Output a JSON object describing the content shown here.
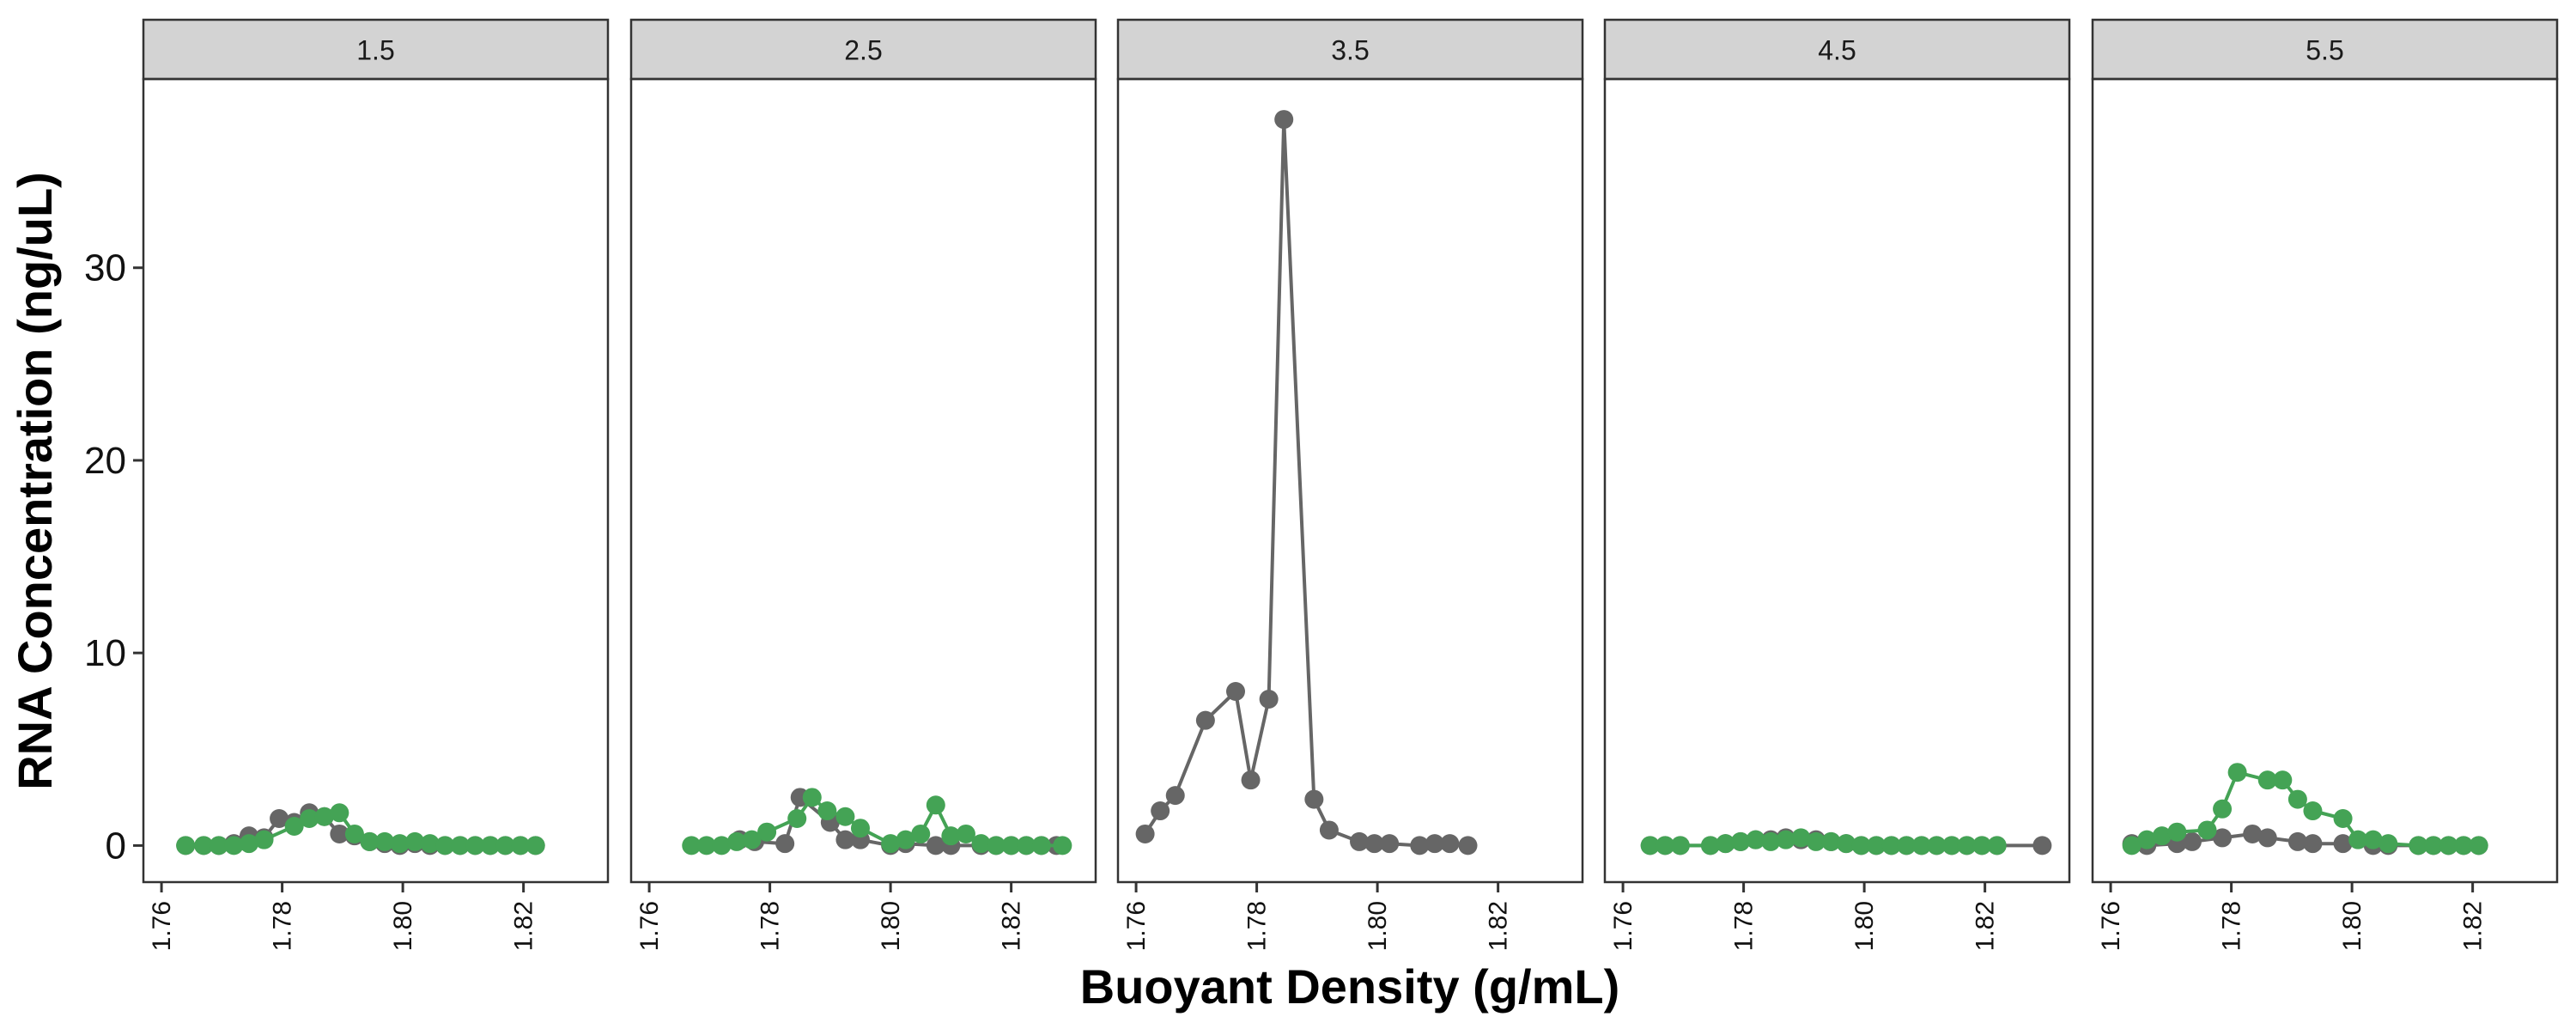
{
  "chart_data": {
    "type": "line",
    "xlabel": "Buoyant Density (g/mL)",
    "ylabel": "RNA Concentration (ng/uL)",
    "xlim": [
      1.757,
      1.834
    ],
    "ylim": [
      -1.9,
      39.8
    ],
    "x_ticks": [
      "1.76",
      "1.78",
      "1.80",
      "1.82"
    ],
    "y_ticks": [
      "0",
      "10",
      "20",
      "30"
    ],
    "grid": false,
    "legend": "none",
    "colors": {
      "gray": "#666666",
      "green": "#44a355",
      "strip_fill": "#d3d3d3",
      "panel_border": "#333333"
    },
    "panels": [
      {
        "label": "1.5",
        "series": [
          {
            "color": "gray",
            "x": [
              1.764,
              1.767,
              1.7695,
              1.772,
              1.7745,
              1.777,
              1.7795,
              1.782,
              1.7845,
              1.787,
              1.7895,
              1.792,
              1.7945,
              1.797,
              1.7995,
              1.802,
              1.8045,
              1.807,
              1.8095,
              1.812,
              1.8145,
              1.817,
              1.8195,
              1.822
            ],
            "values": [
              0,
              0,
              0,
              0.1,
              0.5,
              0.4,
              1.4,
              1.2,
              1.7,
              1.5,
              0.6,
              0.5,
              0.2,
              0.1,
              0,
              0.1,
              0,
              0,
              0,
              0,
              0,
              0,
              0,
              0
            ]
          },
          {
            "color": "green",
            "x": [
              1.764,
              1.767,
              1.7695,
              1.772,
              1.7745,
              1.777,
              1.782,
              1.7845,
              1.787,
              1.7895,
              1.792,
              1.7945,
              1.797,
              1.7995,
              1.802,
              1.8045,
              1.807,
              1.8095,
              1.812,
              1.8145,
              1.817,
              1.8195,
              1.822
            ],
            "values": [
              0,
              0,
              0,
              0,
              0.1,
              0.3,
              1.0,
              1.4,
              1.5,
              1.7,
              0.6,
              0.2,
              0.2,
              0.1,
              0.2,
              0.1,
              0,
              0,
              0,
              0,
              0,
              0,
              0
            ]
          }
        ]
      },
      {
        "label": "2.5",
        "series": [
          {
            "color": "gray",
            "x": [
              1.775,
              1.7775,
              1.7825,
              1.785,
              1.79,
              1.7925,
              1.795,
              1.8,
              1.8025,
              1.8075,
              1.81,
              1.815,
              1.8175,
              1.82,
              1.8225,
              1.825,
              1.8275
            ],
            "values": [
              0.3,
              0.2,
              0.1,
              2.5,
              1.2,
              0.3,
              0.3,
              0,
              0.1,
              0,
              0,
              0,
              0,
              0,
              0,
              0,
              0
            ]
          },
          {
            "color": "green",
            "x": [
              1.767,
              1.7695,
              1.772,
              1.7745,
              1.777,
              1.7795,
              1.7845,
              1.787,
              1.7895,
              1.7925,
              1.795,
              1.8,
              1.8025,
              1.805,
              1.8075,
              1.81,
              1.8125,
              1.815,
              1.8175,
              1.82,
              1.8225,
              1.825,
              1.8285
            ],
            "values": [
              0,
              0,
              0,
              0.2,
              0.3,
              0.7,
              1.4,
              2.5,
              1.8,
              1.5,
              0.9,
              0.1,
              0.3,
              0.6,
              2.1,
              0.5,
              0.6,
              0.1,
              0,
              0,
              0,
              0,
              0
            ]
          }
        ]
      },
      {
        "label": "3.5",
        "series": [
          {
            "color": "gray",
            "x": [
              1.7615,
              1.764,
              1.7665,
              1.7715,
              1.7765,
              1.779,
              1.782,
              1.7845,
              1.7895,
              1.792,
              1.797,
              1.7995,
              1.802,
              1.807,
              1.8095,
              1.812,
              1.815
            ],
            "values": [
              0.6,
              1.8,
              2.6,
              6.5,
              8.0,
              3.4,
              7.6,
              37.7,
              2.4,
              0.8,
              0.2,
              0.1,
              0.1,
              0,
              0.1,
              0.1,
              0
            ]
          }
        ]
      },
      {
        "label": "4.5",
        "series": [
          {
            "color": "gray",
            "x": [
              1.7645,
              1.767,
              1.7695,
              1.7745,
              1.777,
              1.7795,
              1.782,
              1.7845,
              1.787,
              1.7895,
              1.792,
              1.7945,
              1.797,
              1.7995,
              1.802,
              1.8045,
              1.807,
              1.8095,
              1.812,
              1.8145,
              1.817,
              1.8195,
              1.822,
              1.8295
            ],
            "values": [
              0,
              0,
              0,
              0,
              0.1,
              0.2,
              0.3,
              0.3,
              0.4,
              0.3,
              0.3,
              0.2,
              0.1,
              0,
              0,
              0,
              0,
              0,
              0,
              0,
              0,
              0,
              0,
              0
            ]
          },
          {
            "color": "green",
            "x": [
              1.7645,
              1.767,
              1.7695,
              1.7745,
              1.777,
              1.7795,
              1.782,
              1.7845,
              1.787,
              1.7895,
              1.792,
              1.7945,
              1.797,
              1.7995,
              1.802,
              1.8045,
              1.807,
              1.8095,
              1.812,
              1.8145,
              1.817,
              1.8195,
              1.822
            ],
            "values": [
              0,
              0,
              0,
              0,
              0.1,
              0.2,
              0.3,
              0.2,
              0.3,
              0.4,
              0.2,
              0.2,
              0.1,
              0,
              0,
              0,
              0,
              0,
              0,
              0,
              0,
              0,
              0
            ]
          }
        ]
      },
      {
        "label": "5.5",
        "series": [
          {
            "color": "gray",
            "x": [
              1.7635,
              1.766,
              1.771,
              1.7735,
              1.7785,
              1.7835,
              1.786,
              1.791,
              1.7935,
              1.7985,
              1.8035,
              1.806,
              1.811,
              1.8135,
              1.816,
              1.8185,
              1.821
            ],
            "values": [
              0.1,
              0,
              0.1,
              0.2,
              0.4,
              0.6,
              0.4,
              0.2,
              0.1,
              0.1,
              0,
              0,
              0,
              0,
              0,
              0,
              0
            ]
          },
          {
            "color": "green",
            "x": [
              1.7635,
              1.766,
              1.7685,
              1.771,
              1.776,
              1.7785,
              1.781,
              1.786,
              1.7885,
              1.791,
              1.7935,
              1.7985,
              1.801,
              1.8035,
              1.806,
              1.811,
              1.8135,
              1.816,
              1.8185,
              1.821
            ],
            "values": [
              0,
              0.3,
              0.5,
              0.7,
              0.8,
              1.9,
              3.8,
              3.4,
              3.4,
              2.4,
              1.8,
              1.4,
              0.3,
              0.3,
              0.1,
              0,
              0,
              0,
              0,
              0
            ]
          }
        ]
      }
    ]
  }
}
